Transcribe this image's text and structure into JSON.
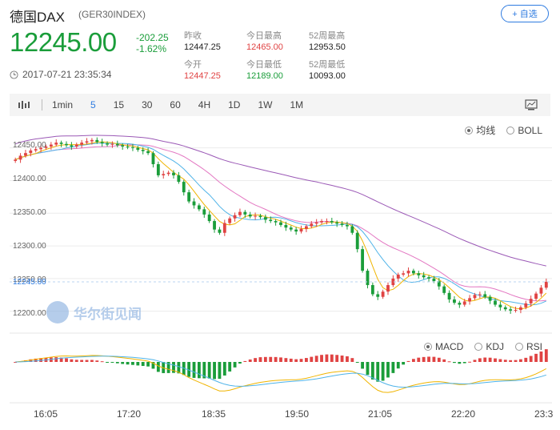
{
  "header": {
    "name": "德国DAX",
    "code": "(GER30INDEX)",
    "add_label": "+ 自选",
    "price": "12245.00",
    "change": "-202.25",
    "change_pct": "-1.62%",
    "timestamp": "2017-07-21 23:35:34"
  },
  "stats": [
    {
      "label": "昨收",
      "value": "12447.25"
    },
    {
      "label": "今日最高",
      "value": "12465.00"
    },
    {
      "label": "52周最高",
      "value": "12953.50"
    },
    {
      "label": "今开",
      "value": "12447.25"
    },
    {
      "label": "今日最低",
      "value": "12189.00"
    },
    {
      "label": "52周最低",
      "value": "10093.00"
    }
  ],
  "toolbar": {
    "periods": [
      "1min",
      "5",
      "15",
      "30",
      "60",
      "4H",
      "1D",
      "1W",
      "1M"
    ],
    "active": "5"
  },
  "main_legend": [
    "均线",
    "BOLL"
  ],
  "sub_legend": [
    "MACD",
    "KDJ",
    "RSI"
  ],
  "current_price_tag": "12245.00",
  "watermark": "华尔街见闻",
  "colors": {
    "up": "#e04343",
    "down": "#1a9d3a",
    "accent": "#2e7be0"
  },
  "chart_data": {
    "type": "candlestick",
    "y_ticks": [
      "12450.00",
      "12400.00",
      "12350.00",
      "12300.00",
      "12250.00",
      "12200.00"
    ],
    "ylim": [
      12180,
      12490
    ],
    "x_ticks": [
      "16:05",
      "17:20",
      "18:35",
      "19:50",
      "21:05",
      "22:20",
      "23:3"
    ],
    "close": [
      12432,
      12438,
      12442,
      12446,
      12448,
      12450,
      12452,
      12455,
      12458,
      12456,
      12454,
      12452,
      12455,
      12458,
      12460,
      12462,
      12459,
      12457,
      12455,
      12456,
      12454,
      12452,
      12451,
      12450,
      12447,
      12445,
      12442,
      12425,
      12408,
      12410,
      12412,
      12408,
      12398,
      12382,
      12368,
      12362,
      12356,
      12348,
      12338,
      12325,
      12320,
      12335,
      12342,
      12347,
      12352,
      12348,
      12345,
      12346,
      12344,
      12340,
      12338,
      12336,
      12332,
      12328,
      12325,
      12322,
      12326,
      12330,
      12334,
      12336,
      12338,
      12338,
      12336,
      12334,
      12332,
      12330,
      12320,
      12295,
      12262,
      12240,
      12226,
      12222,
      12230,
      12240,
      12250,
      12256,
      12258,
      12262,
      12258,
      12255,
      12252,
      12250,
      12246,
      12238,
      12228,
      12218,
      12213,
      12210,
      12215,
      12220,
      12225,
      12226,
      12222,
      12216,
      12210,
      12206,
      12203,
      12201,
      12202,
      12206,
      12212,
      12219,
      12227,
      12236,
      12245
    ]
  }
}
